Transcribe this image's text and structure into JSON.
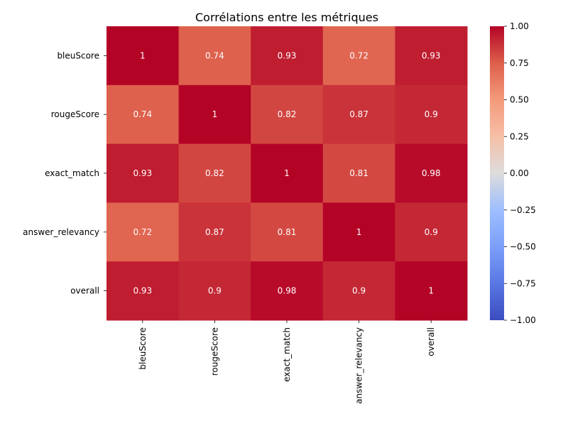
{
  "chart_data": {
    "type": "heatmap",
    "title": "Corrélations entre les métriques",
    "rows": [
      "bleuScore",
      "rougeScore",
      "exact_match",
      "answer_relevancy",
      "overall"
    ],
    "columns": [
      "bleuScore",
      "rougeScore",
      "exact_match",
      "answer_relevancy",
      "overall"
    ],
    "values": [
      [
        1,
        0.74,
        0.93,
        0.72,
        0.93
      ],
      [
        0.74,
        1,
        0.82,
        0.87,
        0.9
      ],
      [
        0.93,
        0.82,
        1,
        0.81,
        0.98
      ],
      [
        0.72,
        0.87,
        0.81,
        1,
        0.9
      ],
      [
        0.93,
        0.9,
        0.98,
        0.9,
        1
      ]
    ],
    "annotations": [
      [
        "1",
        "0.74",
        "0.93",
        "0.72",
        "0.93"
      ],
      [
        "0.74",
        "1",
        "0.82",
        "0.87",
        "0.9"
      ],
      [
        "0.93",
        "0.82",
        "1",
        "0.81",
        "0.98"
      ],
      [
        "0.72",
        "0.87",
        "0.81",
        "1",
        "0.9"
      ],
      [
        "0.93",
        "0.9",
        "0.98",
        "0.9",
        "1"
      ]
    ],
    "colormap": "coolwarm",
    "vmin": -1.0,
    "vmax": 1.0,
    "colorbar": {
      "ticks": [
        1.0,
        0.75,
        0.5,
        0.25,
        0.0,
        -0.25,
        -0.5,
        -0.75,
        -1.0
      ],
      "tick_labels": [
        "1.00",
        "0.75",
        "0.50",
        "0.25",
        "0.00",
        "−0.25",
        "−0.50",
        "−0.75",
        "−1.00"
      ],
      "placement": "right"
    },
    "x_tick_rotation": "vertical"
  }
}
